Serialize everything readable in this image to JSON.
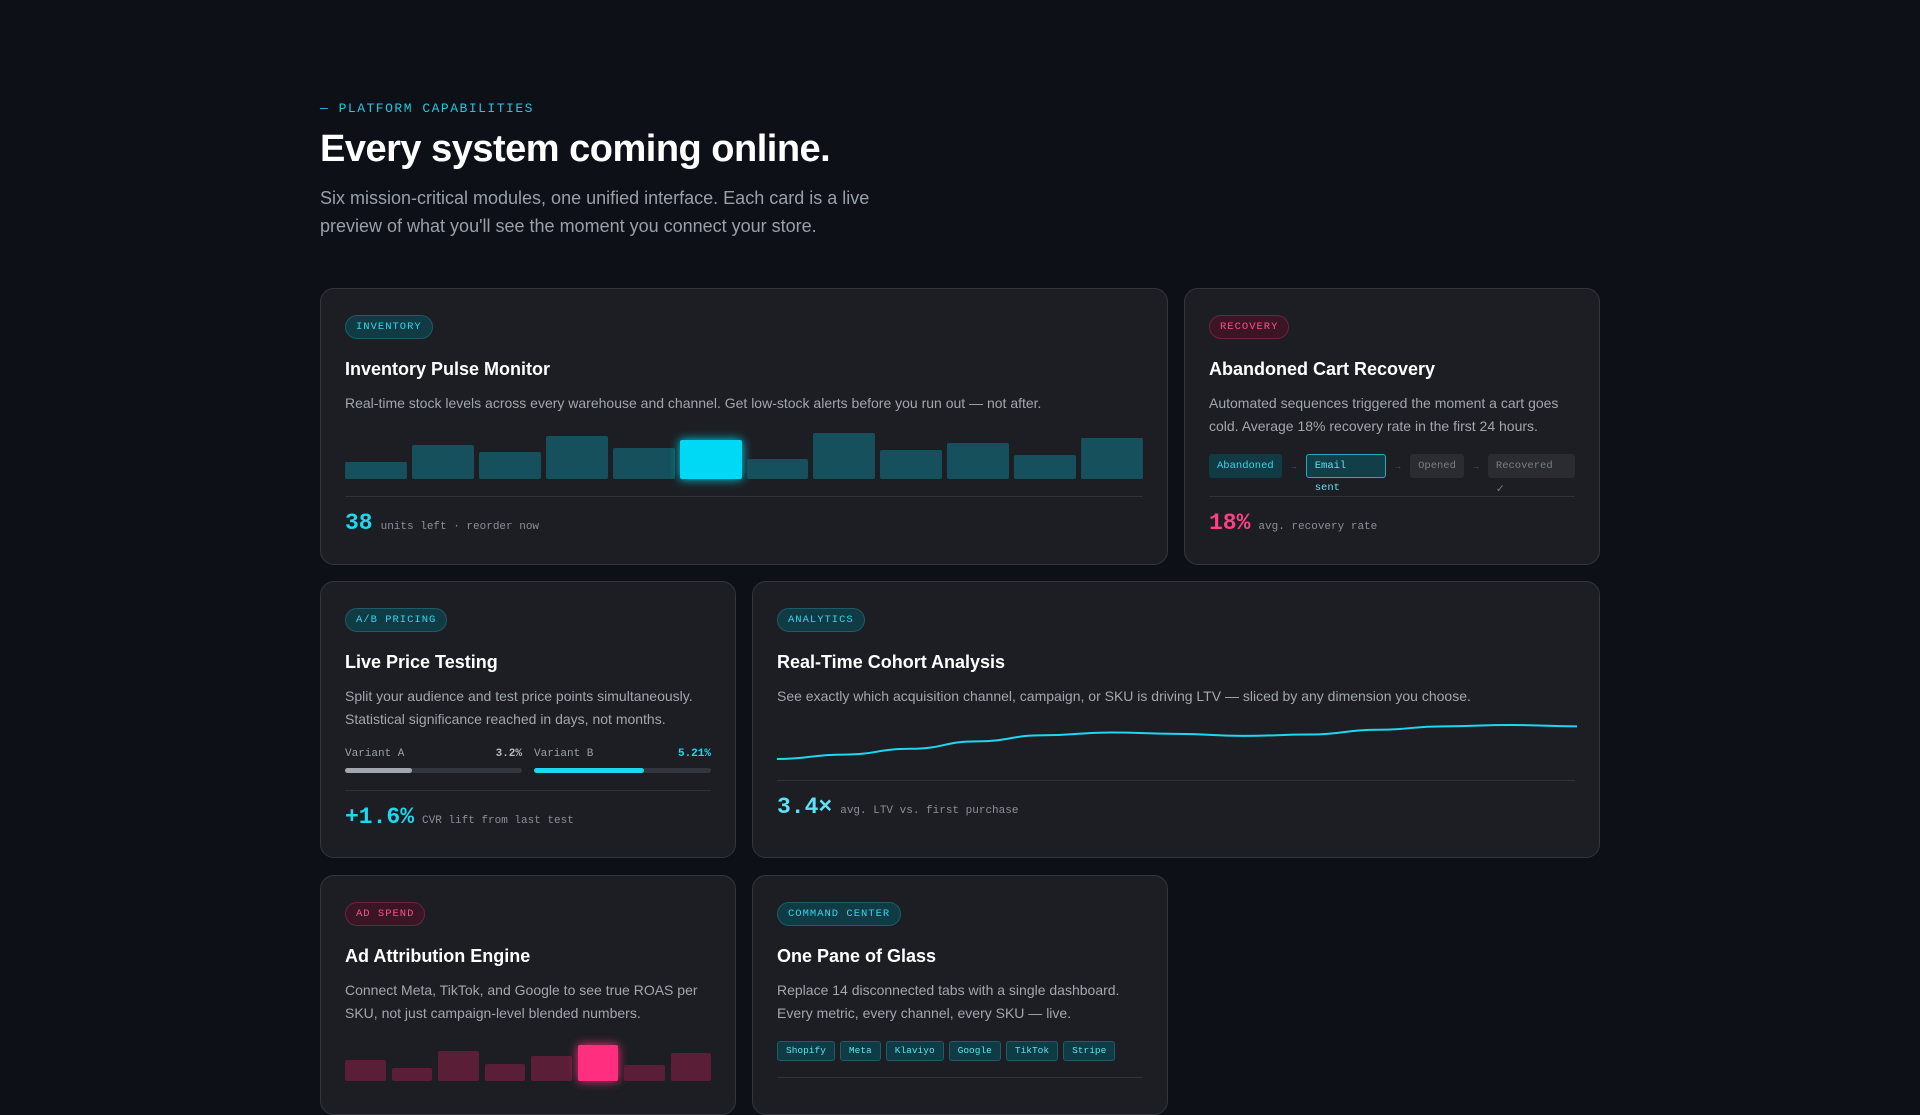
{
  "section": {
    "eyebrow": "— PLATFORM CAPABILITIES",
    "title": "Every system coming online.",
    "subtitle": "Six mission-critical modules, one unified interface. Each card is a live preview of what you'll see the moment you connect your store."
  },
  "colors": {
    "accent": "#1ed8f2",
    "pink": "#ff3f86",
    "card_bg": "#1c1e23",
    "page_bg": "#0d1117"
  },
  "cards": {
    "inventory": {
      "badge": "INVENTORY",
      "title": "Inventory Pulse Monitor",
      "desc": "Real-time stock levels across every warehouse and channel. Get low-stock alerts before you run out — not after.",
      "bars": [
        0.37,
        0.74,
        0.59,
        0.93,
        0.67,
        0.85,
        0.44,
        1.0,
        0.63,
        0.78,
        0.52,
        0.89
      ],
      "highlight_index": 5,
      "stat_value": "38",
      "stat_label": "units left · reorder now"
    },
    "recovery": {
      "badge": "RECOVERY",
      "title": "Abandoned Cart Recovery",
      "desc": "Automated sequences triggered the moment a cart goes cold. Average 18% recovery rate in the first 24 hours.",
      "steps": [
        "Abandoned",
        "Email sent",
        "Opened",
        "Recovered ✓"
      ],
      "arrow": "→",
      "stat_value": "18%",
      "stat_label": "avg. recovery rate"
    },
    "pricing": {
      "badge": "A/B PRICING",
      "title": "Live Price Testing",
      "desc": "Split your audience and test price points simultaneously. Statistical significance reached in days, not months.",
      "variant_a": {
        "label": "Variant A",
        "value": "3.2%",
        "level": 0.38
      },
      "variant_b": {
        "label": "Variant B",
        "value": "5.21%",
        "level": 0.62
      },
      "stat_value": "+1.6%",
      "stat_label": "CVR lift from last test"
    },
    "analytics": {
      "badge": "ANALYTICS",
      "title": "Real-Time Cohort Analysis",
      "desc": "See exactly which acquisition channel, campaign, or SKU is driving LTV — sliced by any dimension you choose.",
      "trend": [
        0.0,
        0.13,
        0.3,
        0.52,
        0.7,
        0.78,
        0.74,
        0.68,
        0.72,
        0.86,
        0.96,
        1.0,
        0.96
      ],
      "stat_value": "3.4×",
      "stat_label": "avg. LTV vs. first purchase"
    },
    "adspend": {
      "badge": "AD SPEND",
      "title": "Ad Attribution Engine",
      "desc": "Connect Meta, TikTok, and Google to see true ROAS per SKU, not just campaign-level blended numbers.",
      "bars": [
        0.58,
        0.36,
        0.82,
        0.48,
        0.7,
        1.0,
        0.45,
        0.77
      ],
      "highlight_index": 5
    },
    "command": {
      "badge": "COMMAND CENTER",
      "title": "One Pane of Glass",
      "desc": "Replace 14 disconnected tabs with a single dashboard. Every metric, every channel, every SKU — live.",
      "tags": [
        "Shopify",
        "Meta",
        "Klaviyo",
        "Google",
        "TikTok",
        "Stripe"
      ]
    }
  }
}
